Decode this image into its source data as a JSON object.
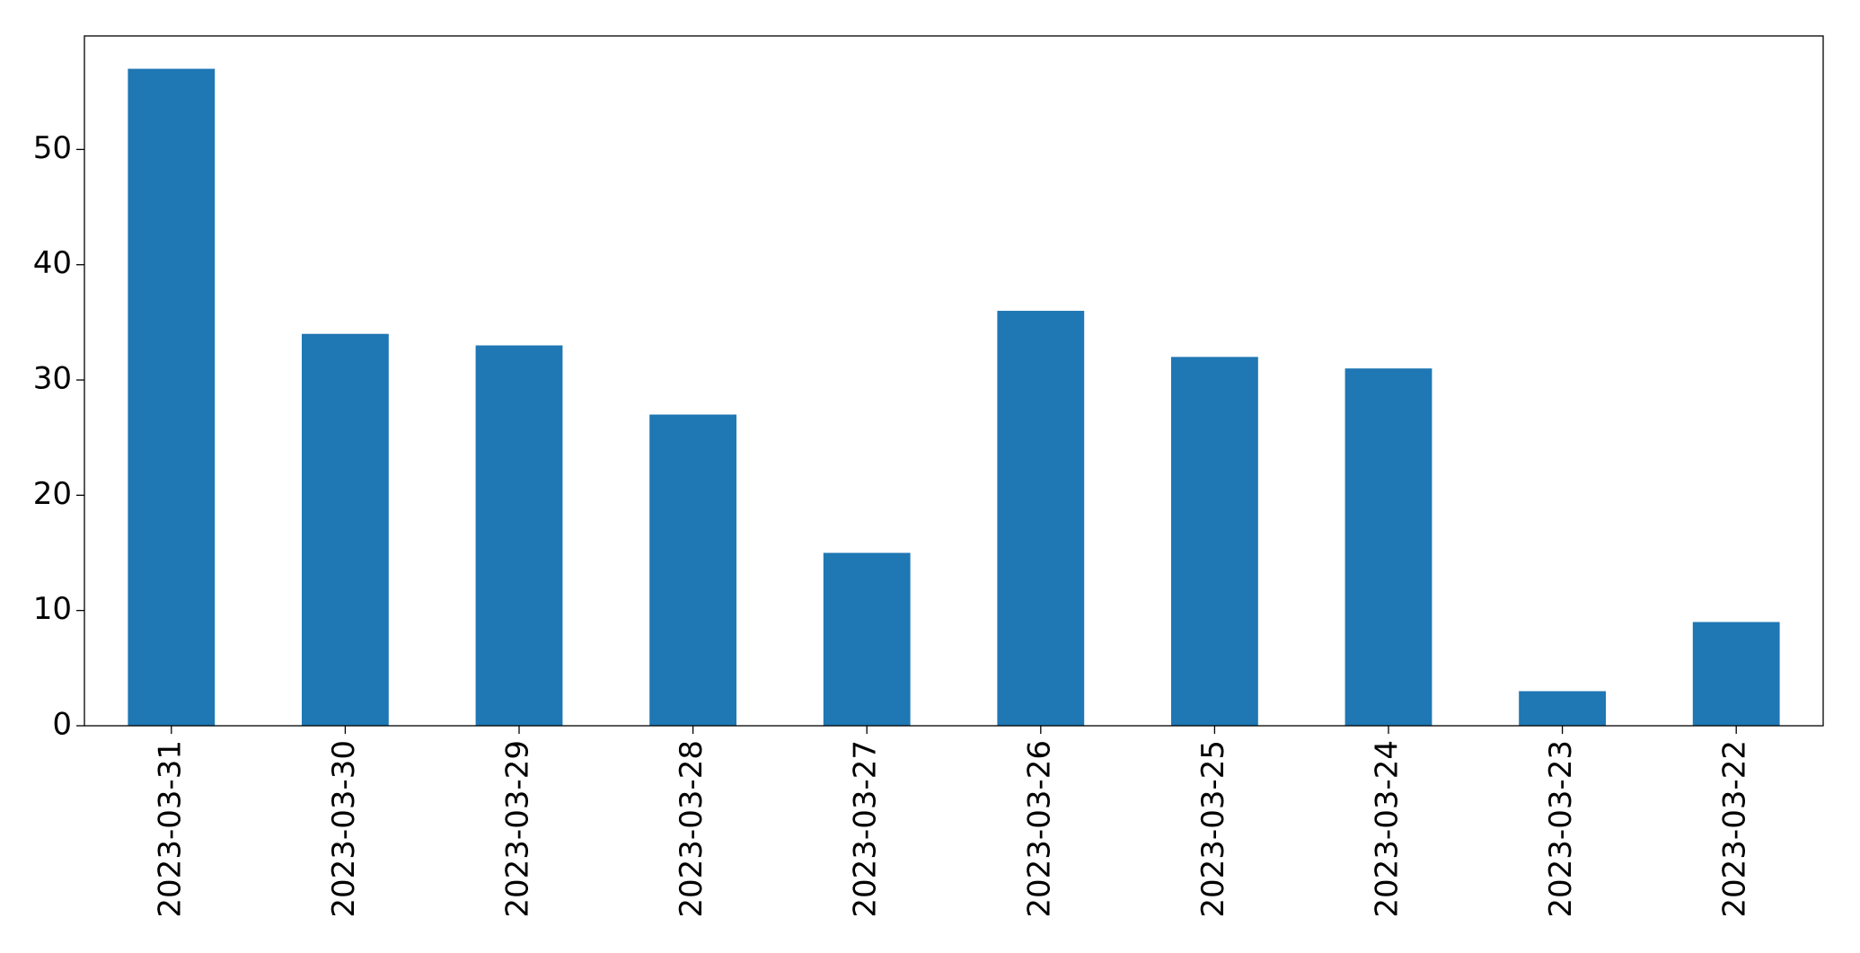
{
  "chart_data": {
    "type": "bar",
    "categories": [
      "2023-03-31",
      "2023-03-30",
      "2023-03-29",
      "2023-03-28",
      "2023-03-27",
      "2023-03-26",
      "2023-03-25",
      "2023-03-24",
      "2023-03-23",
      "2023-03-22"
    ],
    "values": [
      57,
      34,
      33,
      27,
      15,
      36,
      32,
      31,
      3,
      9
    ],
    "color": "#1f77b4",
    "ylim": [
      0,
      59.85
    ],
    "yticks": [
      0,
      10,
      20,
      30,
      40,
      50
    ],
    "grid": false
  }
}
